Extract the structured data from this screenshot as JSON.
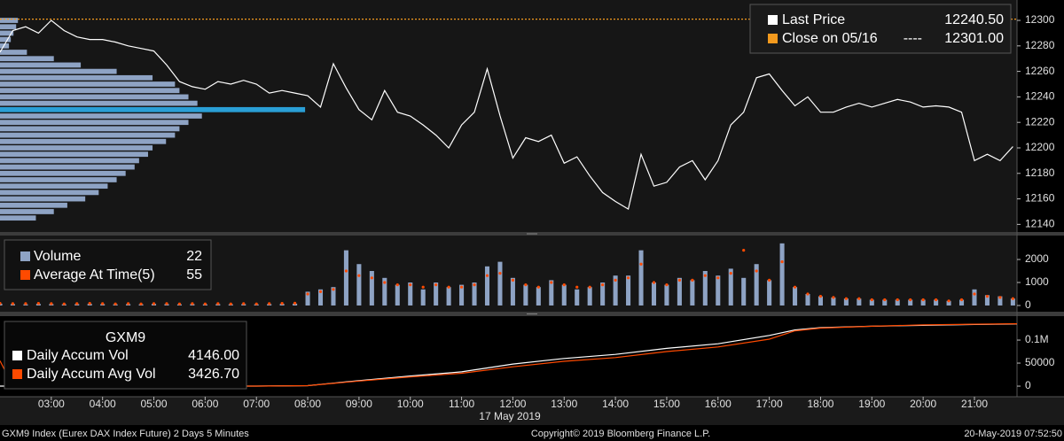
{
  "chart_data": [
    {
      "type": "line",
      "x": [
        2,
        2.25,
        2.5,
        2.75,
        3,
        3.25,
        3.5,
        3.75,
        4,
        4.25,
        4.5,
        4.75,
        5,
        5.25,
        5.5,
        5.75,
        6,
        6.25,
        6.5,
        6.75,
        7,
        7.25,
        7.5,
        7.75,
        8,
        8.25,
        8.5,
        8.75,
        9,
        9.25,
        9.5,
        9.75,
        10,
        10.25,
        10.5,
        10.75,
        11,
        11.25,
        11.5,
        11.75,
        12,
        12.25,
        12.5,
        12.75,
        13,
        13.25,
        13.5,
        13.75,
        14,
        14.25,
        14.5,
        14.75,
        15,
        15.25,
        15.5,
        15.75,
        16,
        16.25,
        16.5,
        16.75,
        17,
        17.25,
        17.5,
        17.75,
        18,
        18.25,
        18.5,
        18.75,
        19,
        19.25,
        19.5,
        19.75,
        20,
        20.25,
        20.5,
        20.75,
        21,
        21.25,
        21.5,
        21.75
      ],
      "xlim": [
        2,
        21.83
      ],
      "ylim": [
        12134,
        12316
      ],
      "yticks": [
        12140,
        12160,
        12180,
        12200,
        12220,
        12240,
        12260,
        12280,
        12300
      ],
      "series": [
        {
          "name": "Last Price",
          "color": "#ffffff",
          "legend_value": "12240.50",
          "values": [
            12275,
            12292,
            12295,
            12290,
            12300,
            12292,
            12287,
            12285,
            12285,
            12283,
            12280,
            12278,
            12276,
            12265,
            12252,
            12248,
            12246,
            12252,
            12250,
            12253,
            12250,
            12243,
            12245,
            12243,
            12241,
            12232,
            12266,
            12247,
            12230,
            12222,
            12245,
            12228,
            12225,
            12218,
            12210,
            12200,
            12218,
            12228,
            12262,
            12225,
            12192,
            12208,
            12205,
            12210,
            12188,
            12193,
            12178,
            12165,
            12158,
            12152,
            12195,
            12170,
            12173,
            12185,
            12190,
            12175,
            12190,
            12218,
            12228,
            12255,
            12258,
            12245,
            12233,
            12240,
            12228,
            12228,
            12232,
            12235,
            12232,
            12235,
            12238,
            12236,
            12232,
            12233,
            12232,
            12228,
            12190,
            12195,
            12190,
            12201
          ]
        }
      ],
      "reference_line": {
        "name": "Close on 05/16",
        "legend_separator": "----",
        "value": 12301,
        "value_label": "12301.00",
        "color": "#f39a1e"
      },
      "volume_profile": {
        "color": "#8ea3c4",
        "poc_color": "#2a9fd6",
        "prices": [
          12145,
          12150,
          12155,
          12160,
          12165,
          12170,
          12175,
          12180,
          12185,
          12190,
          12195,
          12200,
          12205,
          12210,
          12215,
          12220,
          12225,
          12230,
          12235,
          12240,
          12245,
          12250,
          12255,
          12260,
          12265,
          12270,
          12275,
          12280,
          12285,
          12290,
          12295,
          12300
        ],
        "values": [
          40,
          60,
          75,
          95,
          110,
          120,
          130,
          140,
          150,
          155,
          165,
          170,
          185,
          195,
          200,
          210,
          225,
          340,
          220,
          210,
          200,
          195,
          170,
          130,
          90,
          60,
          30,
          10,
          12,
          15,
          18,
          20
        ]
      }
    },
    {
      "type": "bar",
      "x": [
        2,
        2.25,
        2.5,
        2.75,
        3,
        3.25,
        3.5,
        3.75,
        4,
        4.25,
        4.5,
        4.75,
        5,
        5.25,
        5.5,
        5.75,
        6,
        6.25,
        6.5,
        6.75,
        7,
        7.25,
        7.5,
        7.75,
        8,
        8.25,
        8.5,
        8.75,
        9,
        9.25,
        9.5,
        9.75,
        10,
        10.25,
        10.5,
        10.75,
        11,
        11.25,
        11.5,
        11.75,
        12,
        12.25,
        12.5,
        12.75,
        13,
        13.25,
        13.5,
        13.75,
        14,
        14.25,
        14.5,
        14.75,
        15,
        15.25,
        15.5,
        15.75,
        16,
        16.25,
        16.5,
        16.75,
        17,
        17.25,
        17.5,
        17.75,
        18,
        18.25,
        18.5,
        18.75,
        19,
        19.25,
        19.5,
        19.75,
        20,
        20.25,
        20.5,
        20.75,
        21,
        21.25,
        21.5,
        21.75
      ],
      "xlim": [
        2,
        21.83
      ],
      "ylim": [
        -270,
        3040
      ],
      "yticks": [
        0,
        1000,
        2000
      ],
      "series": [
        {
          "name": "Volume",
          "color": "#8ea3c4",
          "legend_value": "22",
          "values": [
            80,
            60,
            50,
            70,
            60,
            50,
            60,
            70,
            60,
            50,
            60,
            50,
            70,
            60,
            50,
            60,
            50,
            60,
            50,
            60,
            50,
            60,
            70,
            80,
            600,
            700,
            800,
            2400,
            1800,
            1500,
            1200,
            900,
            1000,
            700,
            1000,
            800,
            900,
            1000,
            1700,
            1900,
            1200,
            900,
            800,
            1100,
            900,
            700,
            800,
            1000,
            1300,
            1300,
            2400,
            1000,
            900,
            1200,
            1100,
            1500,
            1300,
            1600,
            1200,
            1800,
            1100,
            2700,
            800,
            500,
            400,
            350,
            300,
            300,
            250,
            250,
            250,
            250,
            250,
            250,
            200,
            250,
            700,
            450,
            400,
            300
          ]
        },
        {
          "name": "Average At Time(5)",
          "color": "#ff4a00",
          "legend_value": "55",
          "style": "dots",
          "values": [
            90,
            80,
            80,
            90,
            80,
            70,
            80,
            90,
            80,
            70,
            80,
            70,
            80,
            80,
            70,
            80,
            70,
            80,
            70,
            80,
            70,
            80,
            90,
            100,
            500,
            600,
            700,
            1500,
            1300,
            1200,
            1000,
            900,
            900,
            800,
            900,
            800,
            800,
            900,
            1300,
            1400,
            1100,
            900,
            800,
            1000,
            900,
            800,
            800,
            900,
            1100,
            1200,
            1800,
            1000,
            900,
            1100,
            1100,
            1300,
            1200,
            1400,
            2400,
            1500,
            1100,
            1900,
            800,
            500,
            400,
            350,
            300,
            300,
            250,
            250,
            250,
            250,
            250,
            250,
            200,
            250,
            500,
            400,
            350,
            300
          ]
        }
      ]
    },
    {
      "type": "line",
      "title": "GXM9",
      "x": [
        2,
        2.25,
        3,
        4,
        5,
        6,
        7,
        8,
        9,
        10,
        11,
        12,
        13,
        14,
        15,
        16,
        17,
        17.5,
        18,
        19,
        20,
        21,
        21.83
      ],
      "xlim": [
        2,
        21.83
      ],
      "ylim": [
        -23000,
        152000
      ],
      "yticks": [
        {
          "value": 100000,
          "label": "0.1M"
        },
        50000,
        0
      ],
      "xticks": [
        {
          "value": 3,
          "label": "03:00"
        },
        {
          "value": 4,
          "label": "04:00"
        },
        {
          "value": 5,
          "label": "05:00"
        },
        {
          "value": 6,
          "label": "06:00"
        },
        {
          "value": 7,
          "label": "07:00"
        },
        {
          "value": 8,
          "label": "08:00"
        },
        {
          "value": 9,
          "label": "09:00"
        },
        {
          "value": 10,
          "label": "10:00"
        },
        {
          "value": 11,
          "label": "11:00"
        },
        {
          "value": 12,
          "label": "12:00"
        },
        {
          "value": 13,
          "label": "13:00"
        },
        {
          "value": 14,
          "label": "14:00"
        },
        {
          "value": 15,
          "label": "15:00"
        },
        {
          "value": 16,
          "label": "16:00"
        },
        {
          "value": 17,
          "label": "17:00"
        },
        {
          "value": 18,
          "label": "18:00"
        },
        {
          "value": 19,
          "label": "19:00"
        },
        {
          "value": 20,
          "label": "20:00"
        },
        {
          "value": 21,
          "label": "21:00"
        }
      ],
      "xlabel": "17 May 2019",
      "series": [
        {
          "name": "Daily Accum Vol",
          "color": "#ffffff",
          "legend_value": "4146.00",
          "values": [
            0,
            0,
            0,
            0,
            0,
            0,
            0,
            1000,
            12000,
            22000,
            31000,
            48000,
            60000,
            69000,
            82000,
            92000,
            110000,
            122000,
            127000,
            130000,
            132000,
            134000,
            135000
          ]
        },
        {
          "name": "Daily Accum Avg Vol",
          "color": "#ff4a00",
          "legend_value": "3426.70",
          "values": [
            55000,
            0,
            0,
            0,
            0,
            0,
            0,
            1000,
            11000,
            20000,
            28000,
            42000,
            54000,
            62000,
            75000,
            85000,
            102000,
            120000,
            126000,
            130000,
            133000,
            134500,
            135500
          ]
        }
      ]
    }
  ],
  "footer": {
    "left": "GXM9 Index (Eurex DAX Index Future) 2 Days 5 Minutes",
    "center": "Copyright© 2019 Bloomberg Finance L.P.",
    "right": "20-May-2019 07:52:50"
  }
}
